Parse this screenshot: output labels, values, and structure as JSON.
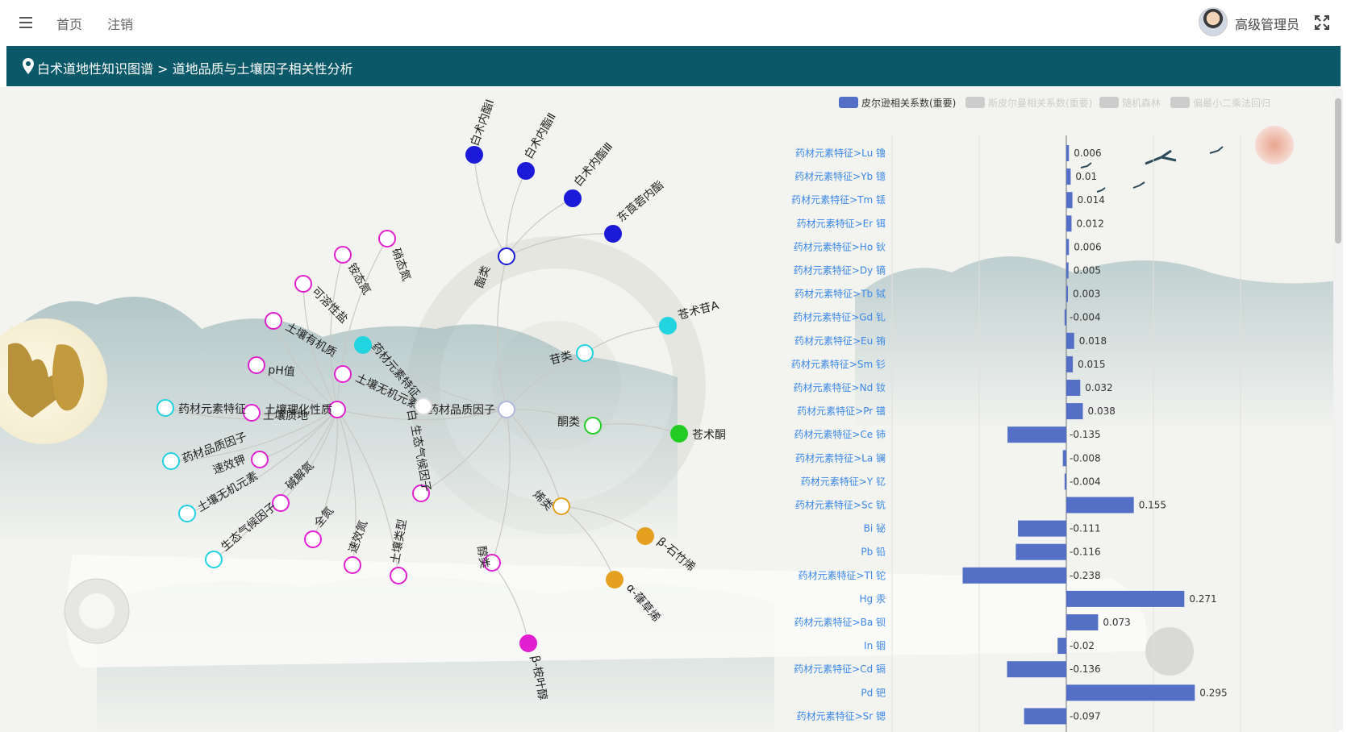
{
  "nav": {
    "home": "首页",
    "logout": "注销",
    "user": "高级管理员"
  },
  "page_title": "白术道地性知识图谱 > 道地品质与土壤因子相关性分析",
  "legend": [
    {
      "label": "皮尔逊相关系数(重要)",
      "active": true,
      "color": "#5470c6"
    },
    {
      "label": "斯皮尔曼相关系数(重要)",
      "active": false,
      "color": "#cccccc"
    },
    {
      "label": "随机森林",
      "active": false,
      "color": "#cccccc"
    },
    {
      "label": "偏最小二乘法回归",
      "active": false,
      "color": "#cccccc"
    }
  ],
  "graph": {
    "nodes": [
      {
        "id": "root",
        "label": "药材品质因子",
        "color": "#b0b8d8",
        "filled": false
      },
      {
        "id": "lactone",
        "label": "酯类",
        "color": "#1a1ad8",
        "filled": false
      },
      {
        "id": "l1",
        "label": "白术内酯Ⅰ",
        "color": "#1a1ad8",
        "filled": true
      },
      {
        "id": "l2",
        "label": "白术内酯Ⅱ",
        "color": "#1a1ad8",
        "filled": true
      },
      {
        "id": "l3",
        "label": "白术内酯Ⅲ",
        "color": "#1a1ad8",
        "filled": true
      },
      {
        "id": "l4",
        "label": "东莨菪内酯",
        "color": "#1a1ad8",
        "filled": true
      },
      {
        "id": "glycoside",
        "label": "苷类",
        "color": "#22d3e0",
        "filled": false
      },
      {
        "id": "g1",
        "label": "苍术苷A",
        "color": "#22d3e0",
        "filled": true
      },
      {
        "id": "ketone",
        "label": "酮类",
        "color": "#22cc22",
        "filled": false
      },
      {
        "id": "k1",
        "label": "苍术酮",
        "color": "#22cc22",
        "filled": true
      },
      {
        "id": "alkene",
        "label": "烯类",
        "color": "#e6a020",
        "filled": false
      },
      {
        "id": "a1",
        "label": "β-石竹烯",
        "color": "#e6a020",
        "filled": true
      },
      {
        "id": "a2",
        "label": "α-葎草烯",
        "color": "#e6a020",
        "filled": true
      },
      {
        "id": "alcohol",
        "label": "醇类",
        "color": "#e020d0",
        "filled": false
      },
      {
        "id": "al1",
        "label": "β-桉叶醇",
        "color": "#e020d0",
        "filled": true
      },
      {
        "id": "climate",
        "label": "生态气候因子",
        "color": "#e020d0",
        "filled": false
      },
      {
        "id": "sinorg",
        "label": "土壤无机元素",
        "color": "#e020d0",
        "filled": false
      },
      {
        "id": "melem",
        "label": "药材元素特征",
        "color": "#22d3e0",
        "filled": true
      },
      {
        "id": "sphys",
        "label": "土壤理化性质",
        "color": "#e020d0",
        "filled": false
      },
      {
        "id": "p1",
        "label": "硝态氮",
        "color": "#e020d0",
        "filled": false
      },
      {
        "id": "p2",
        "label": "铵态氮",
        "color": "#e020d0",
        "filled": false
      },
      {
        "id": "p3",
        "label": "可溶性盐",
        "color": "#e020d0",
        "filled": false
      },
      {
        "id": "p4",
        "label": "土壤有机质",
        "color": "#e020d0",
        "filled": false
      },
      {
        "id": "p5",
        "label": "pH值",
        "color": "#e020d0",
        "filled": false
      },
      {
        "id": "p6",
        "label": "土壤质地",
        "color": "#e020d0",
        "filled": false
      },
      {
        "id": "p7",
        "label": "速效钾",
        "color": "#e020d0",
        "filled": false
      },
      {
        "id": "p8",
        "label": "碱解氮",
        "color": "#e020d0",
        "filled": false
      },
      {
        "id": "p9",
        "label": "全氮",
        "color": "#e020d0",
        "filled": false
      },
      {
        "id": "p10",
        "label": "速效氮",
        "color": "#e020d0",
        "filled": false
      },
      {
        "id": "p11",
        "label": "土壤类型",
        "color": "#e020d0",
        "filled": false
      },
      {
        "id": "c1",
        "label": "药材元素特征",
        "color": "#22d3e0",
        "filled": false
      },
      {
        "id": "c2",
        "label": "药材品质因子",
        "color": "#22d3e0",
        "filled": false
      },
      {
        "id": "c3",
        "label": "土壤无机元素",
        "color": "#22d3e0",
        "filled": false
      },
      {
        "id": "c4",
        "label": "生态气候因子",
        "color": "#22d3e0",
        "filled": false
      },
      {
        "id": "wsmall",
        "label": "白",
        "color": "#ffffff",
        "filled": true
      }
    ],
    "edges": [
      [
        "root",
        "lactone"
      ],
      [
        "lactone",
        "l1"
      ],
      [
        "lactone",
        "l2"
      ],
      [
        "lactone",
        "l3"
      ],
      [
        "lactone",
        "l4"
      ],
      [
        "root",
        "glycoside"
      ],
      [
        "glycoside",
        "g1"
      ],
      [
        "root",
        "ketone"
      ],
      [
        "ketone",
        "k1"
      ],
      [
        "root",
        "alkene"
      ],
      [
        "alkene",
        "a1"
      ],
      [
        "alkene",
        "a2"
      ],
      [
        "root",
        "alcohol"
      ],
      [
        "alcohol",
        "al1"
      ],
      [
        "root",
        "melem"
      ],
      [
        "root",
        "sinorg"
      ],
      [
        "root",
        "climate"
      ],
      [
        "root",
        "sphys"
      ],
      [
        "root",
        "wsmall"
      ],
      [
        "sphys",
        "p1"
      ],
      [
        "sphys",
        "p2"
      ],
      [
        "sphys",
        "p3"
      ],
      [
        "sphys",
        "p4"
      ],
      [
        "sphys",
        "p5"
      ],
      [
        "sphys",
        "p6"
      ],
      [
        "sphys",
        "p7"
      ],
      [
        "sphys",
        "p8"
      ],
      [
        "sphys",
        "p9"
      ],
      [
        "sphys",
        "p10"
      ],
      [
        "sphys",
        "p11"
      ],
      [
        "sphys",
        "c1"
      ],
      [
        "sphys",
        "c2"
      ],
      [
        "sphys",
        "c3"
      ],
      [
        "sphys",
        "c4"
      ]
    ]
  },
  "chart_data": {
    "type": "bar",
    "orientation": "horizontal",
    "series": [
      {
        "name": "皮尔逊相关系数(重要)",
        "color": "#5470c6"
      }
    ],
    "categories": [
      "药材元素特征>Lu 镥",
      "药材元素特征>Yb 镱",
      "药材元素特征>Tm 铥",
      "药材元素特征>Er 铒",
      "药材元素特征>Ho 钬",
      "药材元素特征>Dy 镝",
      "药材元素特征>Tb 铽",
      "药材元素特征>Gd 钆",
      "药材元素特征>Eu 铕",
      "药材元素特征>Sm 钐",
      "药材元素特征>Nd 钕",
      "药材元素特征>Pr 镨",
      "药材元素特征>Ce 铈",
      "药材元素特征>La 镧",
      "药材元素特征>Y 钇",
      "药材元素特征>Sc 钪",
      "Bi 铋",
      "Pb 铅",
      "药材元素特征>Tl 铊",
      "Hg 汞",
      "药材元素特征>Ba 钡",
      "In 铟",
      "药材元素特征>Cd 镉",
      "Pd 钯",
      "药材元素特征>Sr 锶"
    ],
    "values": [
      0.006,
      0.01,
      0.014,
      0.012,
      0.006,
      0.005,
      0.003,
      -0.004,
      0.018,
      0.015,
      0.032,
      0.038,
      -0.135,
      -0.008,
      -0.004,
      0.155,
      -0.111,
      -0.116,
      -0.238,
      0.271,
      0.073,
      -0.02,
      -0.136,
      0.295,
      -0.097
    ],
    "labels": [
      "0.006",
      "0.01",
      "0.014",
      "0.012",
      "0.006",
      "0.005",
      "0.003",
      "-0.004",
      "0.018",
      "0.015",
      "0.032",
      "0.038",
      "-0.135",
      "-0.008",
      "-0.004",
      "0.155",
      "-0.111",
      "-0.116",
      "-0.238",
      "0.271",
      "0.073",
      "-0.02",
      "-0.136",
      "0.295",
      "-0.097"
    ],
    "xlim": [
      -0.25,
      0.4
    ],
    "grid": true
  }
}
